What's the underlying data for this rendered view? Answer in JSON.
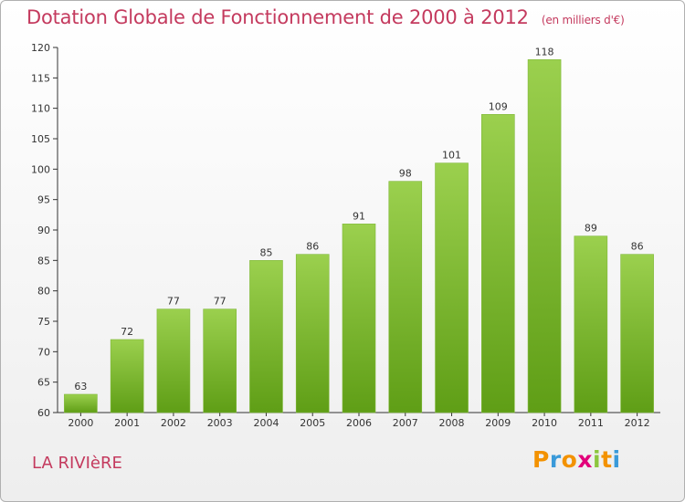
{
  "header": {
    "title": "Dotation Globale de Fonctionnement de 2000 à 2012",
    "subtitle": "(en milliers d'€)"
  },
  "footer": {
    "commune": "LA RIVIèRE",
    "logo": {
      "letters": [
        "P",
        "r",
        "o",
        "x",
        "i",
        "t",
        "i"
      ],
      "colors": [
        "#f39200",
        "#3a9ad9",
        "#f39200",
        "#e2007a",
        "#8dc63f",
        "#f39200",
        "#3a9ad9"
      ]
    }
  },
  "chart_data": {
    "type": "bar",
    "categories": [
      "2000",
      "2001",
      "2002",
      "2003",
      "2004",
      "2005",
      "2006",
      "2007",
      "2008",
      "2009",
      "2010",
      "2011",
      "2012"
    ],
    "values": [
      63,
      72,
      77,
      77,
      85,
      86,
      91,
      98,
      101,
      109,
      118,
      89,
      86
    ],
    "title": "Dotation Globale de Fonctionnement de 2000 à 2012",
    "subtitle": "(en milliers d'€)",
    "ylim": [
      60,
      120
    ],
    "yticks": [
      60,
      65,
      70,
      75,
      80,
      85,
      90,
      95,
      100,
      105,
      110,
      115,
      120
    ],
    "grid": false,
    "bar_color_top": "#9bd04e",
    "bar_color_bottom": "#5f9e16"
  }
}
